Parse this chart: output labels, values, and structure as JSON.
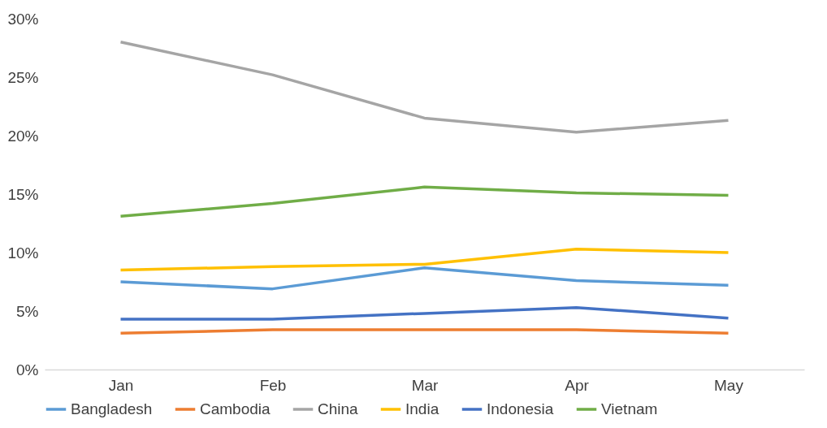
{
  "chart_data": {
    "type": "line",
    "categories": [
      "Jan",
      "Feb",
      "Mar",
      "Apr",
      "May"
    ],
    "series": [
      {
        "name": "Bangladesh",
        "color": "#5b9bd5",
        "values": [
          7.5,
          6.9,
          8.7,
          7.6,
          7.2
        ]
      },
      {
        "name": "Cambodia",
        "color": "#ed7d31",
        "values": [
          3.1,
          3.4,
          3.4,
          3.4,
          3.1
        ]
      },
      {
        "name": "China",
        "color": "#a5a5a5",
        "values": [
          28.0,
          25.2,
          21.5,
          20.3,
          21.3
        ]
      },
      {
        "name": "India",
        "color": "#ffc000",
        "values": [
          8.5,
          8.8,
          9.0,
          10.3,
          10.0
        ]
      },
      {
        "name": "Indonesia",
        "color": "#4472c4",
        "values": [
          4.3,
          4.3,
          4.8,
          5.3,
          4.4
        ]
      },
      {
        "name": "Vietnam",
        "color": "#70ad47",
        "values": [
          13.1,
          14.2,
          15.6,
          15.1,
          14.9
        ]
      }
    ],
    "ylim": [
      0,
      30
    ],
    "yticks": [
      {
        "value": 0,
        "label": "0%"
      },
      {
        "value": 5,
        "label": "5%"
      },
      {
        "value": 10,
        "label": "10%"
      },
      {
        "value": 15,
        "label": "15%"
      },
      {
        "value": 20,
        "label": "20%"
      },
      {
        "value": 25,
        "label": "25%"
      },
      {
        "value": 30,
        "label": "30%"
      }
    ],
    "legend": "bottom"
  }
}
